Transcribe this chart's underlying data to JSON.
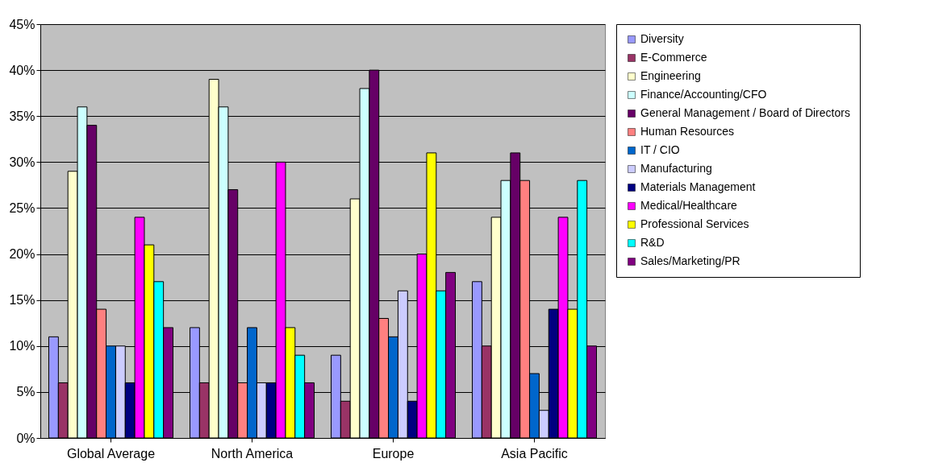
{
  "chart_data": {
    "type": "bar",
    "categories": [
      "Global Average",
      "North America",
      "Europe",
      "Asia Pacific"
    ],
    "ylim": [
      0,
      45
    ],
    "yticks": [
      {
        "value": 0,
        "label": "0%"
      },
      {
        "value": 5,
        "label": "5%"
      },
      {
        "value": 10,
        "label": "10%"
      },
      {
        "value": 15,
        "label": "15%"
      },
      {
        "value": 20,
        "label": "20%"
      },
      {
        "value": 25,
        "label": "25%"
      },
      {
        "value": 30,
        "label": "30%"
      },
      {
        "value": 35,
        "label": "35%"
      },
      {
        "value": 40,
        "label": "40%"
      },
      {
        "value": 45,
        "label": "45%"
      }
    ],
    "grid": "y",
    "legend": "right",
    "series": [
      {
        "name": "Diversity",
        "color": "#9999ff",
        "values": [
          11,
          12,
          9,
          17
        ]
      },
      {
        "name": "E-Commerce",
        "color": "#993366",
        "values": [
          6,
          6,
          4,
          10
        ]
      },
      {
        "name": "Engineering",
        "color": "#ffffcc",
        "values": [
          29,
          39,
          26,
          24
        ]
      },
      {
        "name": "Finance/Accounting/CFO",
        "color": "#ccffff",
        "values": [
          36,
          36,
          38,
          28
        ]
      },
      {
        "name": "General Management / Board of Directors",
        "color": "#660066",
        "values": [
          34,
          27,
          40,
          31
        ]
      },
      {
        "name": "Human Resources",
        "color": "#ff8080",
        "values": [
          14,
          6,
          13,
          28
        ]
      },
      {
        "name": "IT / CIO",
        "color": "#0066cc",
        "values": [
          10,
          12,
          11,
          7
        ]
      },
      {
        "name": "Manufacturing",
        "color": "#ccccff",
        "values": [
          10,
          6,
          16,
          3
        ]
      },
      {
        "name": "Materials Management",
        "color": "#000080",
        "values": [
          6,
          6,
          4,
          14
        ]
      },
      {
        "name": "Medical/Healthcare",
        "color": "#ff00ff",
        "values": [
          24,
          30,
          20,
          24
        ]
      },
      {
        "name": "Professional Services",
        "color": "#ffff00",
        "values": [
          21,
          12,
          31,
          14
        ]
      },
      {
        "name": "R&D",
        "color": "#00ffff",
        "values": [
          17,
          9,
          16,
          28
        ]
      },
      {
        "name": "Sales/Marketing/PR",
        "color": "#800080",
        "values": [
          12,
          6,
          18,
          10
        ]
      }
    ]
  }
}
